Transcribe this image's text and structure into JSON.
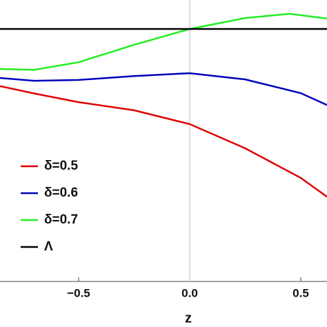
{
  "chart_data": {
    "type": "line",
    "xlabel": "z",
    "xlim": [
      -0.854,
      0.618
    ],
    "ylim": [
      0,
      1
    ],
    "xticks": [
      {
        "value": -0.5,
        "label": "−0.5"
      },
      {
        "value": 0,
        "label": "0.0"
      },
      0.5
    ],
    "legend": "left",
    "series": [
      {
        "name": "δ=0.5",
        "color": "#dd0000",
        "x": [
          -0.854,
          -0.7,
          -0.5,
          -0.25,
          0,
          0.25,
          0.5,
          0.618
        ],
        "values": [
          0.694,
          0.668,
          0.637,
          0.608,
          0.559,
          0.473,
          0.368,
          0.301
        ]
      },
      {
        "name": "δ=0.6",
        "color": "#0000bb",
        "x": [
          -0.854,
          -0.7,
          -0.5,
          -0.25,
          0,
          0.25,
          0.5,
          0.618
        ],
        "values": [
          0.723,
          0.713,
          0.716,
          0.73,
          0.74,
          0.718,
          0.669,
          0.627
        ]
      },
      {
        "name": "δ=0.7",
        "color": "#22ee22",
        "x": [
          -0.854,
          -0.7,
          -0.5,
          -0.25,
          0,
          0.25,
          0.45,
          0.618
        ],
        "values": [
          0.755,
          0.752,
          0.779,
          0.841,
          0.897,
          0.936,
          0.951,
          0.934
        ]
      },
      {
        "name": "Λ",
        "color": "#000000",
        "x": [
          -0.854,
          0.618
        ],
        "values": [
          0.897,
          0.897
        ]
      }
    ]
  }
}
